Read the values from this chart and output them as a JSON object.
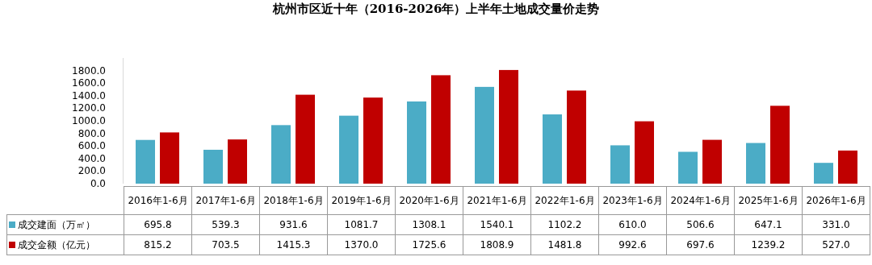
{
  "chart_data": {
    "type": "bar",
    "title": "杭州市区近十年（2016-2026年）上半年土地成交量价走势",
    "categories": [
      "2016年1-6月",
      "2017年1-6月",
      "2018年1-6月",
      "2019年1-6月",
      "2020年1-6月",
      "2021年1-6月",
      "2022年1-6月",
      "2023年1-6月",
      "2024年1-6月",
      "2025年1-6月",
      "2026年1-6月"
    ],
    "series": [
      {
        "name": "成交建面（万㎡）",
        "color": "#4bacc6",
        "values": [
          695.8,
          539.3,
          931.6,
          1081.7,
          1308.1,
          1540.1,
          1102.2,
          610.0,
          506.6,
          647.1,
          331.0
        ],
        "value_labels": [
          "695.8",
          "539.3",
          "931.6",
          "1081.7",
          "1308.1",
          "1540.1",
          "1102.2",
          "610.0",
          "506.6",
          "647.1",
          "331.0"
        ]
      },
      {
        "name": "成交金额（亿元）",
        "color": "#c00000",
        "values": [
          815.2,
          703.5,
          1415.3,
          1370.0,
          1725.6,
          1808.9,
          1481.8,
          992.6,
          697.6,
          1239.2,
          527.0
        ],
        "value_labels": [
          "815.2",
          "703.5",
          "1415.3",
          "1370.0",
          "1725.6",
          "1808.9",
          "1481.8",
          "992.6",
          "697.6",
          "1239.2",
          "527.0"
        ]
      }
    ],
    "ylim": [
      0,
      2000
    ],
    "yticks": [
      {
        "value": 0,
        "label": "0.0"
      },
      {
        "value": 200,
        "label": "200.0"
      },
      {
        "value": 400,
        "label": "400.0"
      },
      {
        "value": 600,
        "label": "600.0"
      },
      {
        "value": 800,
        "label": "800.0"
      },
      {
        "value": 1000,
        "label": "1000.0"
      },
      {
        "value": 1200,
        "label": "1200.0"
      },
      {
        "value": 1400,
        "label": "1400.0"
      },
      {
        "value": 1600,
        "label": "1600.0"
      },
      {
        "value": 1800,
        "label": "1800.0"
      }
    ],
    "legend": "bottom",
    "grid": false
  }
}
